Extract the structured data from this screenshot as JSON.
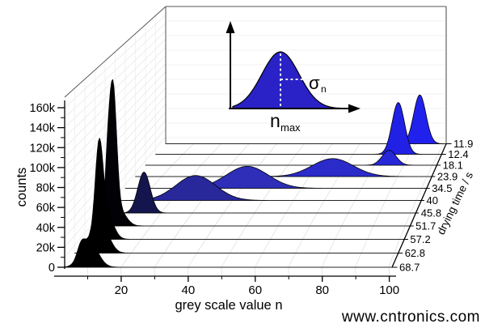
{
  "watermark": {
    "text": "www.cntronics.com",
    "color": "#b2e0b2"
  },
  "axes": {
    "y": {
      "label": "counts",
      "ticks": [
        "0",
        "20k",
        "40k",
        "60k",
        "80k",
        "100k",
        "120k",
        "140k",
        "160k"
      ],
      "max_counts": 160000
    },
    "x": {
      "label": "grey scale value n",
      "ticks": [
        "20",
        "40",
        "60",
        "80",
        "100"
      ],
      "range": [
        0,
        101
      ]
    },
    "z": {
      "label": "drying time / s",
      "ticks": [
        "11.9",
        "12.4",
        "18.1",
        "23.9",
        "34.5",
        "40",
        "45.8",
        "51.7",
        "57.2",
        "62.8",
        "68.7"
      ]
    }
  },
  "inset": {
    "peak_label": "n",
    "peak_sub": "max",
    "sigma_label": "σ",
    "sigma_sub": "n",
    "fill": "#2a22c6"
  },
  "chart_data": {
    "type": "area",
    "description": "3D waterfall of grey-scale-value histograms at successive drying times; order back-to-front",
    "xlabel": "grey scale value n",
    "ylabel": "counts",
    "zlabel": "drying time / s",
    "ylim": [
      0,
      160000
    ],
    "xlim": [
      0,
      101
    ],
    "series": [
      {
        "drying_time_s": "11.9",
        "n_max": 91.5,
        "sigma_n": 2.2,
        "peak_counts": 49000,
        "color": "#2121ee",
        "sub_peaks": []
      },
      {
        "drying_time_s": "12.4",
        "n_max": 86,
        "sigma_n": 2.2,
        "peak_counts": 52000,
        "color": "#2121e6",
        "sub_peaks": []
      },
      {
        "drying_time_s": "18.1",
        "n_max": 85,
        "sigma_n": 2.4,
        "peak_counts": 15000,
        "color": "#2727d8",
        "sub_peaks": []
      },
      {
        "drying_time_s": "23.9",
        "n_max": 68,
        "sigma_n": 7.0,
        "peak_counts": 18000,
        "color": "#2b2bca",
        "sub_peaks": []
      },
      {
        "drying_time_s": "34.5",
        "n_max": 42,
        "sigma_n": 7.0,
        "peak_counts": 22000,
        "color": "#2e2eb8",
        "sub_peaks": []
      },
      {
        "drying_time_s": "40",
        "n_max": 28,
        "sigma_n": 6.5,
        "peak_counts": 25000,
        "color": "#28289a",
        "sub_peaks": []
      },
      {
        "drying_time_s": "45.8",
        "n_max": 14.5,
        "sigma_n": 2.0,
        "peak_counts": 41000,
        "color": "#15154e",
        "sub_peaks": []
      },
      {
        "drying_time_s": "51.7",
        "n_max": 8,
        "sigma_n": 1.1,
        "peak_counts": 127000,
        "color": "#020206",
        "sub_peaks": [
          {
            "n": 6.3,
            "sigma": 0.85,
            "frac": 0.42
          },
          {
            "n": 9.8,
            "sigma": 2.2,
            "frac": 0.13
          }
        ]
      },
      {
        "drying_time_s": "57.2",
        "n_max": 7,
        "sigma_n": 1.2,
        "peak_counts": 89000,
        "color": "#000000",
        "sub_peaks": [
          {
            "n": 9.4,
            "sigma": 2.0,
            "frac": 0.28
          }
        ]
      },
      {
        "drying_time_s": "62.8",
        "n_max": 11,
        "sigma_n": 2.3,
        "peak_counts": 28000,
        "color": "#000000",
        "sub_peaks": [
          {
            "n": 8.3,
            "sigma": 1.2,
            "frac": 0.55
          }
        ]
      },
      {
        "drying_time_s": "68.7",
        "n_max": 10.5,
        "sigma_n": 2.5,
        "peak_counts": 26000,
        "color": "#000000",
        "sub_peaks": [
          {
            "n": 8.0,
            "sigma": 1.1,
            "frac": 0.4
          }
        ]
      }
    ],
    "inset_annotation": "Gaussian sketch defining n_max (peak position) and sigma_n (peak width)"
  }
}
